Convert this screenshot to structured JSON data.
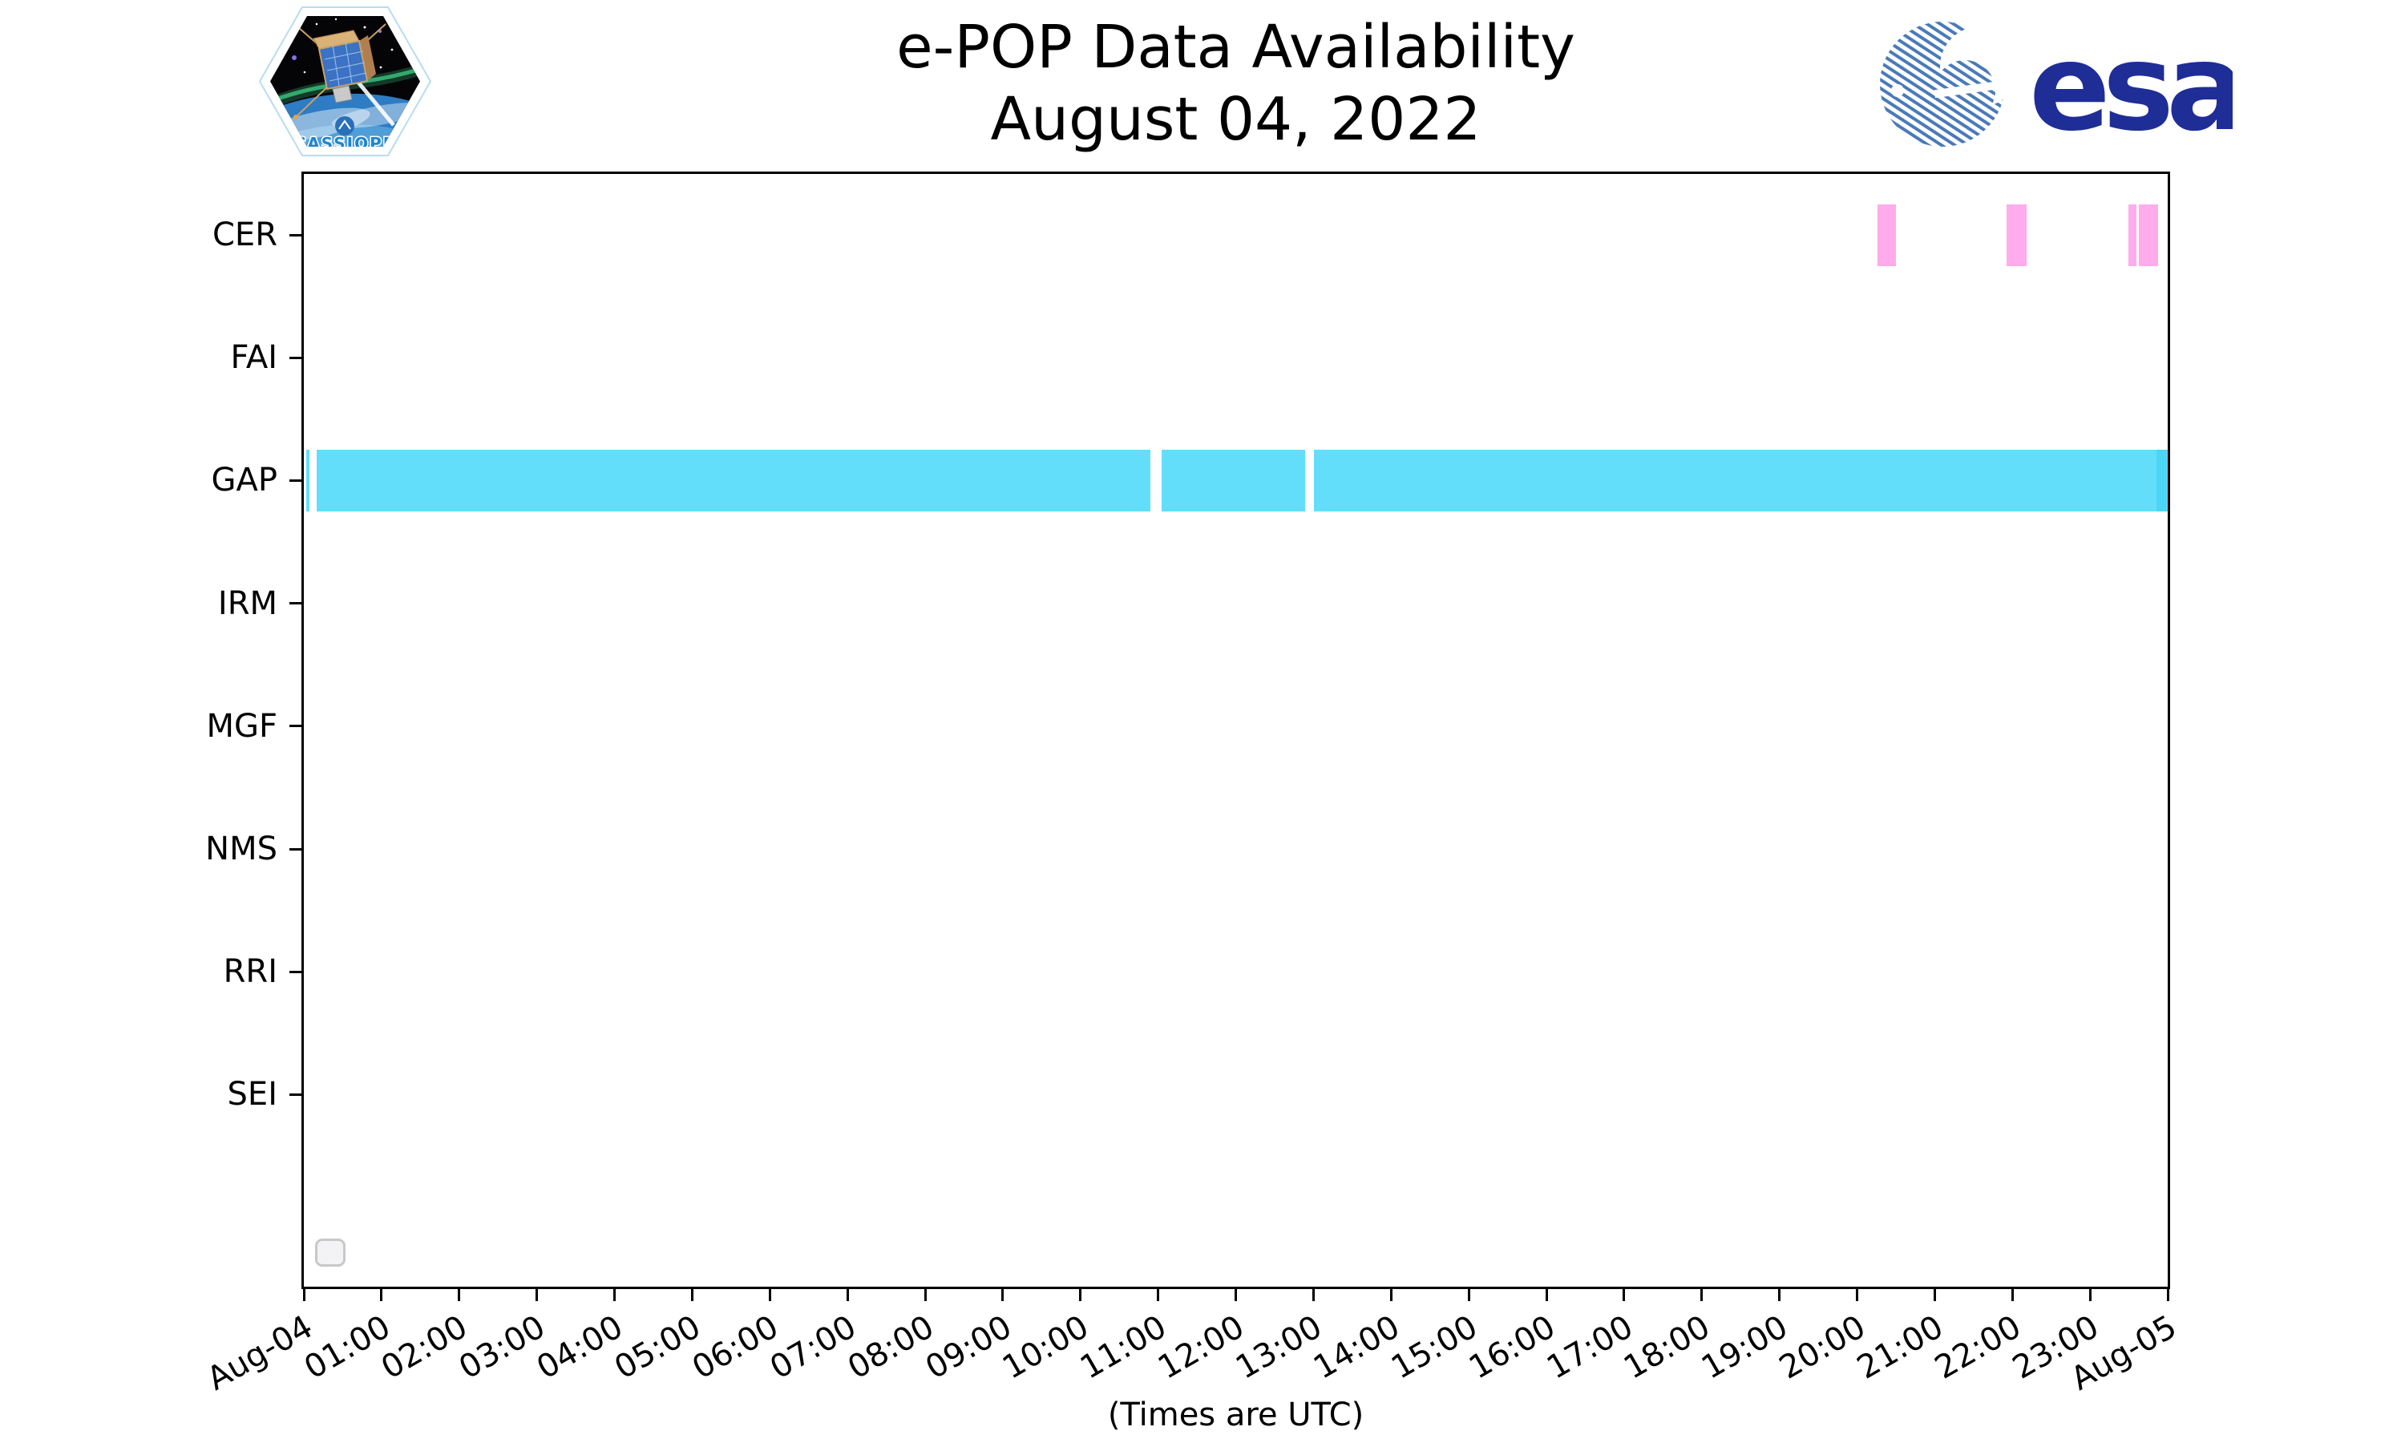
{
  "header": {
    "cassiope_logo": {
      "label": "CASSIOPE"
    },
    "esa_logo": {
      "text": "esa"
    }
  },
  "chart_data": {
    "type": "timeline",
    "title": "e-POP Data Availability",
    "subtitle": "August 04, 2022",
    "xlabel": "(Times are UTC)",
    "rows": [
      "CER",
      "FAI",
      "GAP",
      "IRM",
      "MGF",
      "NMS",
      "RRI",
      "SEI"
    ],
    "x_axis": {
      "start": "Aug-04 00:00 UTC",
      "end": "Aug-05 00:00 UTC",
      "hours": 24,
      "tick_labels": [
        "Aug-04",
        "01:00",
        "02:00",
        "03:00",
        "04:00",
        "05:00",
        "06:00",
        "07:00",
        "08:00",
        "09:00",
        "10:00",
        "11:00",
        "12:00",
        "13:00",
        "14:00",
        "15:00",
        "16:00",
        "17:00",
        "18:00",
        "19:00",
        "20:00",
        "21:00",
        "22:00",
        "23:00",
        "Aug-05"
      ]
    },
    "colors": {
      "cer_bar": "#ffabec",
      "gap_bar": "#63defa",
      "gap_bar_overlap": "#4bd5f6",
      "axis": "#000000",
      "background": "#ffffff",
      "esa_navy": "#1f2d96",
      "esa_stripe_blue": "#4a7ab8",
      "cassiope_text_blue": "#1d86cf"
    },
    "series": [
      {
        "row": "CER",
        "color": "#ffabec",
        "segments": [
          {
            "start": "20:16",
            "end": "20:30",
            "start_hour": 20.26,
            "end_hour": 20.5
          },
          {
            "start": "21:56",
            "end": "22:11",
            "start_hour": 21.93,
            "end_hour": 22.18
          },
          {
            "start": "23:29",
            "end": "23:36",
            "start_hour": 23.49,
            "end_hour": 23.6
          },
          {
            "start": "23:38",
            "end": "23:53",
            "start_hour": 23.63,
            "end_hour": 23.88
          }
        ]
      },
      {
        "row": "GAP",
        "color": "#63defa",
        "segments": [
          {
            "start": "00:02",
            "end": "00:05",
            "start_hour": 0.031,
            "end_hour": 0.077
          },
          {
            "start": "00:10",
            "end": "10:54",
            "start_hour": 0.165,
            "end_hour": 10.9
          },
          {
            "start": "11:03",
            "end": "12:53",
            "start_hour": 11.05,
            "end_hour": 12.89
          },
          {
            "start": "13:01",
            "end": "24:00",
            "start_hour": 13.01,
            "end_hour": 24.0
          }
        ]
      },
      {
        "row": "GAP",
        "color": "#4bd5f6",
        "segments": [
          {
            "start": "23:52",
            "end": "24:00",
            "start_hour": 23.86,
            "end_hour": 23.99
          }
        ]
      }
    ],
    "legend": {
      "visible": true,
      "entries": []
    }
  }
}
